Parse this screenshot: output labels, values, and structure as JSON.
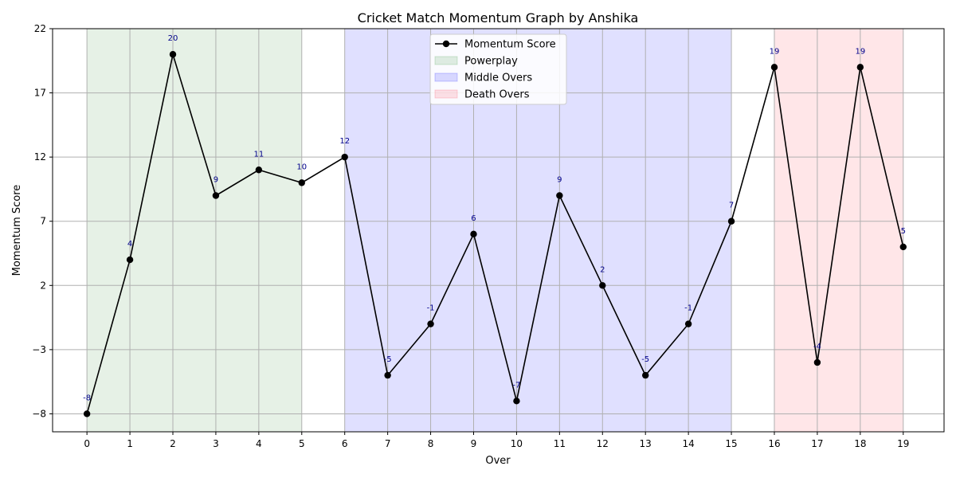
{
  "chart_data": {
    "type": "line",
    "title": "Cricket Match Momentum Graph by Anshika",
    "xlabel": "Over",
    "ylabel": "Momentum Score",
    "x": [
      0,
      1,
      2,
      3,
      4,
      5,
      6,
      7,
      8,
      9,
      10,
      11,
      12,
      13,
      14,
      15,
      16,
      17,
      18,
      19
    ],
    "series": [
      {
        "name": "Momentum Score",
        "values": [
          -8,
          4,
          20,
          9,
          11,
          10,
          12,
          -5,
          -1,
          6,
          -7,
          9,
          2,
          -5,
          -1,
          7,
          19,
          -4,
          19,
          5
        ],
        "color": "#000000",
        "label_color": "#00008b"
      }
    ],
    "phases": [
      {
        "name": "Powerplay",
        "x_start": 0,
        "x_end": 5,
        "color": "#2e8b2e"
      },
      {
        "name": "Middle Overs",
        "x_start": 6,
        "x_end": 15,
        "color": "#0000ff"
      },
      {
        "name": "Death Overs",
        "x_start": 16,
        "x_end": 19,
        "color": "#ff3344"
      }
    ],
    "xticks": [
      0,
      1,
      2,
      3,
      4,
      5,
      6,
      7,
      8,
      9,
      10,
      11,
      12,
      13,
      14,
      15,
      16,
      17,
      18,
      19
    ],
    "yticks": [
      -8,
      -3,
      2,
      7,
      12,
      17,
      22
    ],
    "yticklabels": [
      "−8",
      "−3",
      "2",
      "7",
      "12",
      "17",
      "22"
    ],
    "xlim": [
      -0.8,
      19.95
    ],
    "ylim": [
      -9.4,
      22
    ],
    "grid": true,
    "legend_position": "top-center"
  }
}
